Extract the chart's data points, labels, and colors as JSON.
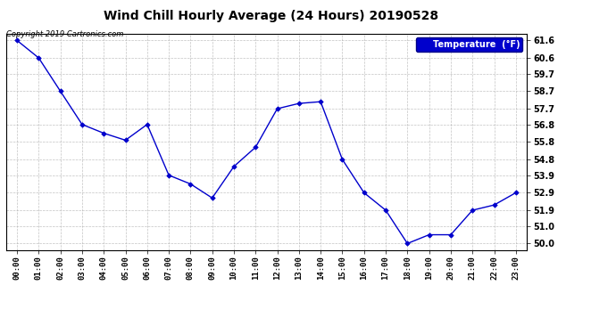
{
  "title": "Wind Chill Hourly Average (24 Hours) 20190528",
  "copyright": "Copyright 2019 Cartronics.com",
  "legend_label": "Temperature  (°F)",
  "hours": [
    0,
    1,
    2,
    3,
    4,
    5,
    6,
    7,
    8,
    9,
    10,
    11,
    12,
    13,
    14,
    15,
    16,
    17,
    18,
    19,
    20,
    21,
    22,
    23
  ],
  "x_labels": [
    "00:00",
    "01:00",
    "02:00",
    "03:00",
    "04:00",
    "05:00",
    "06:00",
    "07:00",
    "08:00",
    "09:00",
    "10:00",
    "11:00",
    "12:00",
    "13:00",
    "14:00",
    "15:00",
    "16:00",
    "17:00",
    "18:00",
    "19:00",
    "20:00",
    "21:00",
    "22:00",
    "23:00"
  ],
  "values": [
    61.6,
    60.6,
    58.7,
    56.8,
    56.3,
    55.9,
    56.8,
    53.9,
    53.4,
    52.6,
    54.4,
    55.5,
    57.7,
    58.0,
    58.1,
    54.8,
    52.9,
    51.9,
    50.0,
    50.5,
    50.5,
    51.9,
    52.2,
    52.9
  ],
  "ylim_min": 49.6,
  "ylim_max": 62.0,
  "yticks": [
    50.0,
    51.0,
    51.9,
    52.9,
    53.9,
    54.8,
    55.8,
    56.8,
    57.7,
    58.7,
    59.7,
    60.6,
    61.6
  ],
  "line_color": "#0000CC",
  "marker_color": "#0000CC",
  "bg_color": "#ffffff",
  "plot_bg_color": "#ffffff",
  "grid_color": "#aaaaaa",
  "title_color": "#000000",
  "legend_bg": "#0000CC",
  "legend_fg": "#ffffff"
}
